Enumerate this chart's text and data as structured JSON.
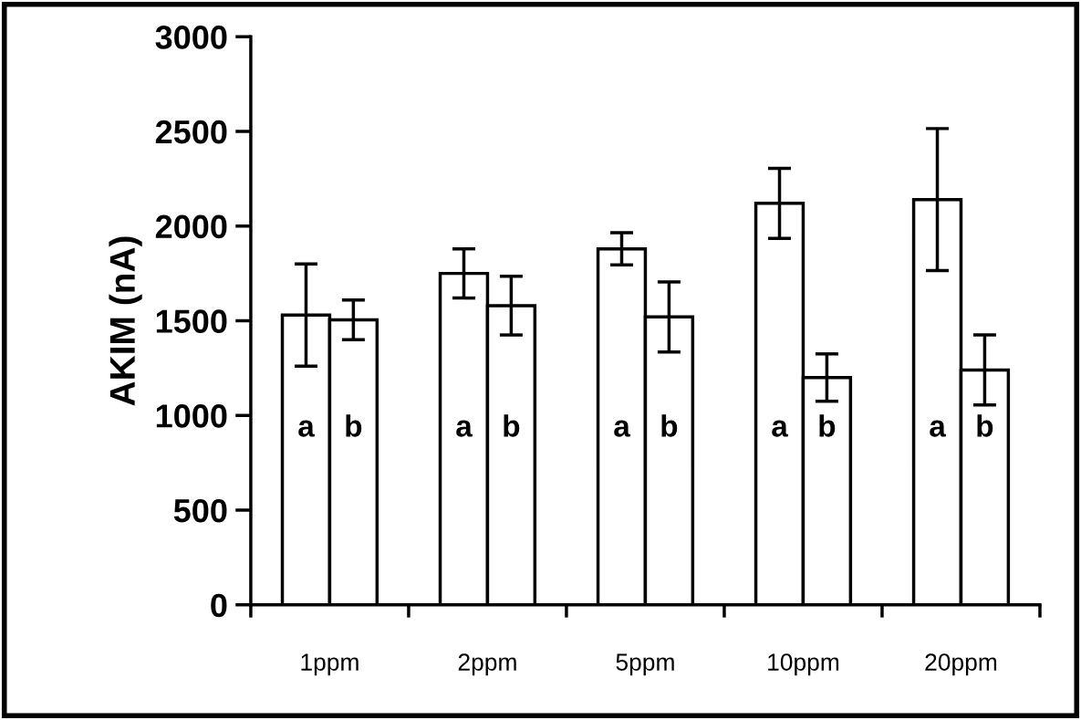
{
  "chart_data": {
    "type": "bar",
    "ylabel": "AKIM (nA)",
    "categories": [
      "1ppm",
      "2ppm",
      "5ppm",
      "10ppm",
      "20ppm"
    ],
    "series": [
      {
        "name": "a",
        "color": "#ffffff",
        "values": [
          1530,
          1750,
          1880,
          2120,
          2140
        ],
        "errors": [
          270,
          130,
          85,
          185,
          375
        ]
      },
      {
        "name": "b",
        "color": "#ffffff",
        "values": [
          1505,
          1580,
          1520,
          1200,
          1240
        ],
        "errors": [
          105,
          155,
          185,
          125,
          185
        ]
      }
    ],
    "ylim": [
      0,
      3000
    ],
    "yticks": [
      0,
      500,
      1000,
      1500,
      2000,
      2500,
      3000
    ],
    "grid": false
  }
}
